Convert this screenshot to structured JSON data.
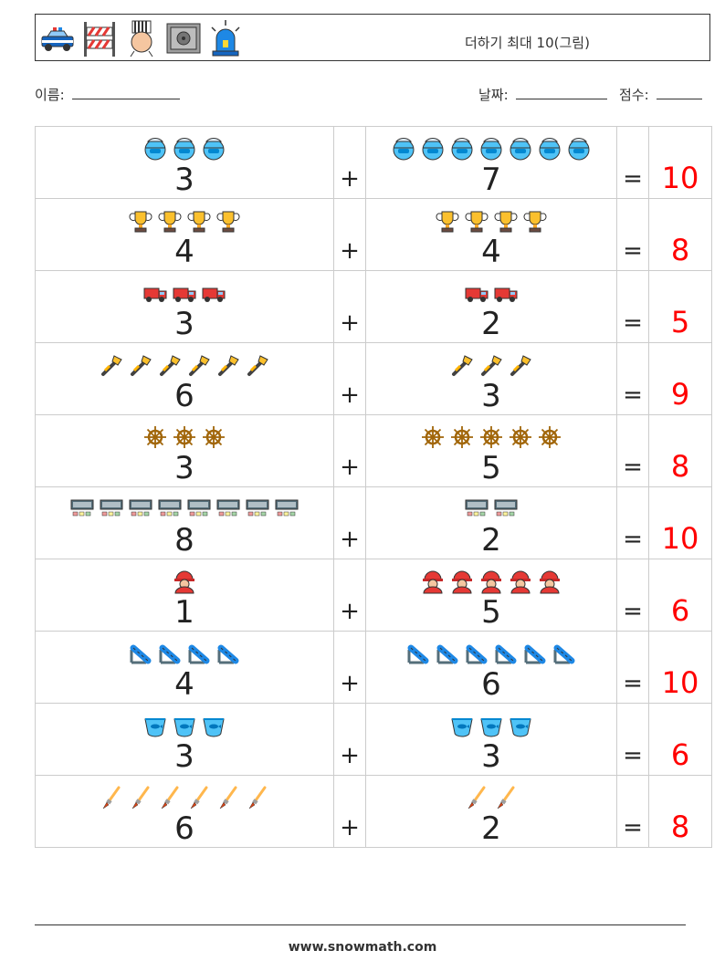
{
  "header": {
    "title": "더하기 최대 10(그림)",
    "icons": [
      "police-car-icon",
      "road-barrier-icon",
      "prisoner-icon",
      "safe-icon",
      "siren-icon"
    ]
  },
  "meta": {
    "name_label": "이름:",
    "date_label": "날짜:",
    "score_label": "점수:"
  },
  "operators": {
    "plus": "+",
    "equals": "="
  },
  "rows": [
    {
      "a": "3",
      "b": "7",
      "answer": "10",
      "icon": "diving-helmet-icon"
    },
    {
      "a": "4",
      "b": "4",
      "answer": "8",
      "icon": "trophy-icon"
    },
    {
      "a": "3",
      "b": "2",
      "answer": "5",
      "icon": "fire-truck-icon"
    },
    {
      "a": "6",
      "b": "3",
      "answer": "9",
      "icon": "pipe-wrench-icon"
    },
    {
      "a": "3",
      "b": "5",
      "answer": "8",
      "icon": "ship-wheel-icon"
    },
    {
      "a": "8",
      "b": "2",
      "answer": "10",
      "icon": "control-panel-icon"
    },
    {
      "a": "1",
      "b": "5",
      "answer": "6",
      "icon": "firefighter-icon"
    },
    {
      "a": "4",
      "b": "6",
      "answer": "10",
      "icon": "fire-hose-icon"
    },
    {
      "a": "3",
      "b": "3",
      "answer": "6",
      "icon": "fish-bowl-icon"
    },
    {
      "a": "6",
      "b": "2",
      "answer": "8",
      "icon": "paint-brush-icon"
    }
  ],
  "footer": {
    "url": "www.snowmath.com"
  }
}
